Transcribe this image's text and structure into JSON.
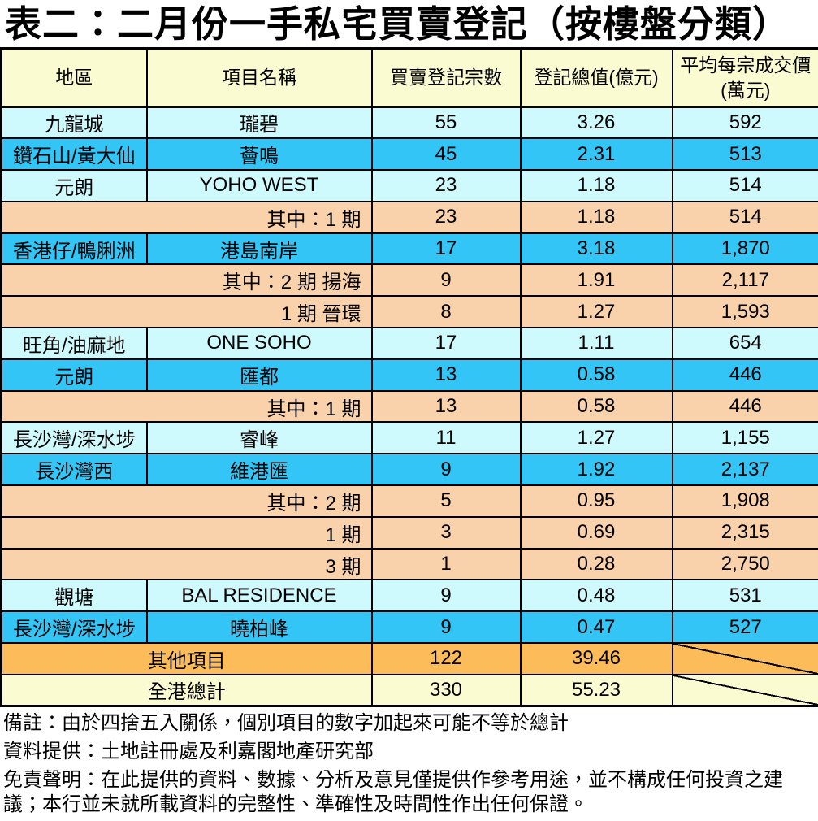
{
  "chart_data": {
    "type": "table",
    "title": "表二：二月份一手私宅買賣登記（按樓盤分類）",
    "columns": [
      "地區",
      "項目名稱",
      "買賣登記宗數",
      "登記總值(億元)",
      "平均每宗成交價\n(萬元)"
    ],
    "rows": [
      {
        "district": "九龍城",
        "project": "瓏碧",
        "count": "55",
        "value": "3.26",
        "avg": "592",
        "style": "cyan"
      },
      {
        "district": "鑽石山/黃大仙",
        "project": "薈鳴",
        "count": "45",
        "value": "2.31",
        "avg": "513",
        "style": "blue"
      },
      {
        "district": "元朗",
        "project": "YOHO WEST",
        "count": "23",
        "value": "1.18",
        "avg": "514",
        "style": "cyan"
      },
      {
        "district": "",
        "project": "其中：1 期",
        "count": "23",
        "value": "1.18",
        "avg": "514",
        "style": "peach",
        "sub": true
      },
      {
        "district": "香港仔/鴨脷洲",
        "project": "港島南岸",
        "count": "17",
        "value": "3.18",
        "avg": "1,870",
        "style": "blue"
      },
      {
        "district": "",
        "project": "其中：2 期  揚海",
        "count": "9",
        "value": "1.91",
        "avg": "2,117",
        "style": "peach",
        "sub": true
      },
      {
        "district": "",
        "project": "1 期  晉環",
        "count": "8",
        "value": "1.27",
        "avg": "1,593",
        "style": "peach",
        "sub": true
      },
      {
        "district": "旺角/油麻地",
        "project": "ONE SOHO",
        "count": "17",
        "value": "1.11",
        "avg": "654",
        "style": "cyan"
      },
      {
        "district": "元朗",
        "project": "匯都",
        "count": "13",
        "value": "0.58",
        "avg": "446",
        "style": "blue"
      },
      {
        "district": "",
        "project": "其中：1 期",
        "count": "13",
        "value": "0.58",
        "avg": "446",
        "style": "peach",
        "sub": true
      },
      {
        "district": "長沙灣/深水埗",
        "project": "睿峰",
        "count": "11",
        "value": "1.27",
        "avg": "1,155",
        "style": "cyan"
      },
      {
        "district": "長沙灣西",
        "project": "維港匯",
        "count": "9",
        "value": "1.92",
        "avg": "2,137",
        "style": "blue"
      },
      {
        "district": "",
        "project": "其中：2 期",
        "count": "5",
        "value": "0.95",
        "avg": "1,908",
        "style": "peach",
        "sub": true
      },
      {
        "district": "",
        "project": "1 期",
        "count": "3",
        "value": "0.69",
        "avg": "2,315",
        "style": "peach",
        "sub": true
      },
      {
        "district": "",
        "project": "3 期",
        "count": "1",
        "value": "0.28",
        "avg": "2,750",
        "style": "peach",
        "sub": true
      },
      {
        "district": "觀塘",
        "project": "BAL RESIDENCE",
        "count": "9",
        "value": "0.48",
        "avg": "531",
        "style": "cyan"
      },
      {
        "district": "長沙灣/深水埗",
        "project": "曉柏峰",
        "count": "9",
        "value": "0.47",
        "avg": "527",
        "style": "blue"
      },
      {
        "label": "其他項目",
        "count": "122",
        "value": "39.46",
        "avg": "",
        "style": "orange",
        "merged": true,
        "diagonal": true
      },
      {
        "label": "全港總計",
        "count": "330",
        "value": "55.23",
        "avg": "",
        "style": "total",
        "merged": true,
        "diagonal": true
      }
    ]
  },
  "notes": [
    "備註：由於四捨五入關係，個別項目的數字加起來可能不等於總計",
    "資料提供：土地註冊處及利嘉閣地產研究部",
    "免責聲明：在此提供的資料、數據、分析及意見僅提供作參考用途，並不構成任何投資之建議；本行並未就所載資料的完整性、準確性及時間性作出任何保證。"
  ],
  "colors": {
    "header_bg": "#FBFBD1",
    "row_cyan": "#CEF9FD",
    "row_blue": "#33C5F5",
    "row_peach": "#F9D2AC",
    "row_orange": "#FBBC59",
    "row_total": "#FBFBD1",
    "border": "#000000"
  }
}
